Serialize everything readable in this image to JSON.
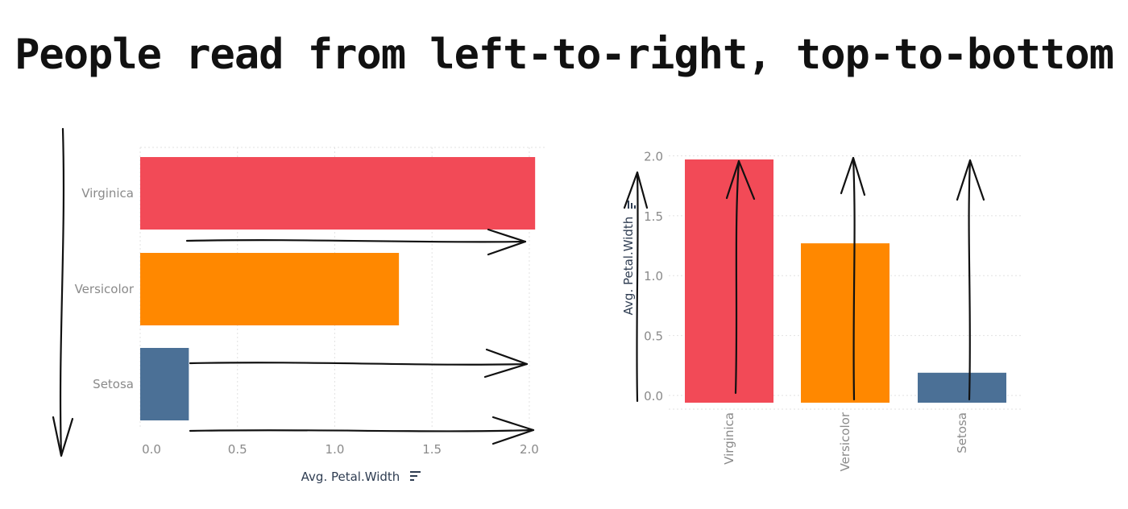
{
  "title": "People read from left-to-right, top-to-bottom",
  "chart_data": [
    {
      "type": "bar",
      "orientation": "horizontal",
      "categories": [
        "Virginica",
        "Versicolor",
        "Setosa"
      ],
      "values": [
        2.03,
        1.33,
        0.25
      ],
      "colors": [
        "#f24a57",
        "#ff8800",
        "#4b7096"
      ],
      "xlabel": "Avg. Petal.Width",
      "ylabel": "",
      "xlim": [
        0,
        2.05
      ],
      "ticks": [
        "0.0",
        "0.5",
        "1.0",
        "1.5",
        "2.0"
      ],
      "grid": true
    },
    {
      "type": "bar",
      "orientation": "vertical",
      "categories": [
        "Virginica",
        "Versicolor",
        "Setosa"
      ],
      "values": [
        2.03,
        1.33,
        0.25
      ],
      "colors": [
        "#f24a57",
        "#ff8800",
        "#4b7096"
      ],
      "xlabel": "",
      "ylabel": "Avg. Petal.Width",
      "ylim": [
        0,
        2.05
      ],
      "ticks": [
        "0.0",
        "0.5",
        "1.0",
        "1.5",
        "2.0"
      ],
      "grid": true
    }
  ]
}
